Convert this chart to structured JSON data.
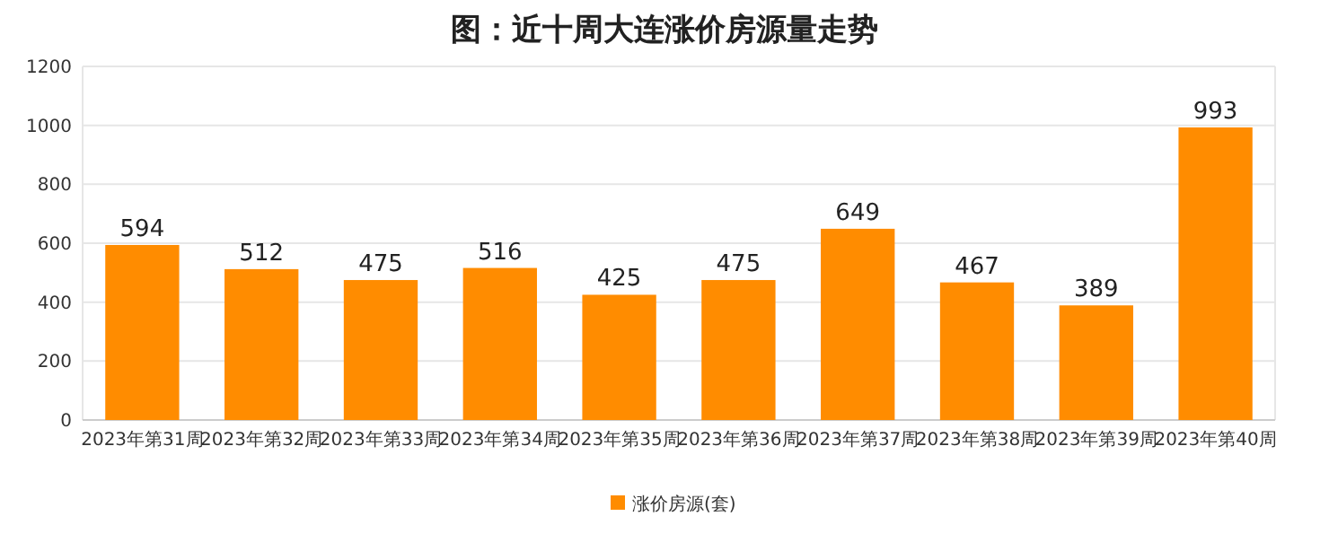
{
  "chart_data": {
    "type": "bar",
    "title": "图：近十周大连涨价房源量走势",
    "categories": [
      "2023年第31周",
      "2023年第32周",
      "2023年第33周",
      "2023年第34周",
      "2023年第35周",
      "2023年第36周",
      "2023年第37周",
      "2023年第38周",
      "2023年第39周",
      "2023年第40周"
    ],
    "series": [
      {
        "name": "涨价房源(套)",
        "color": "#ff8c00",
        "values": [
          594,
          512,
          475,
          516,
          425,
          475,
          649,
          467,
          389,
          993
        ]
      }
    ],
    "ylim": [
      0,
      1200
    ],
    "yticks": [
      0,
      200,
      400,
      600,
      800,
      1000,
      1200
    ],
    "grid": "y",
    "legend": "bottom",
    "data_labels": true
  }
}
